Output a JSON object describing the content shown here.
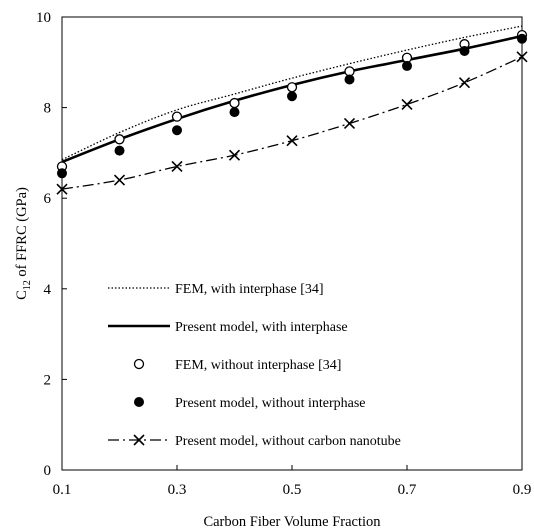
{
  "chart_data": {
    "type": "line",
    "xlabel": "Carbon Fiber Volume Fraction",
    "ylabel_main": "C",
    "ylabel_sub": "12",
    "ylabel_rest": " of FFRC (GPa)",
    "xlim": [
      0.1,
      0.9
    ],
    "ylim": [
      0,
      10
    ],
    "xticks": [
      "0.1",
      "0.3",
      "0.5",
      "0.7",
      "0.9"
    ],
    "yticks": [
      "0",
      "2",
      "4",
      "6",
      "8",
      "10"
    ],
    "grid": false,
    "legend_position": "lower-left",
    "series": [
      {
        "name": "FEM, with interphase [34]",
        "style": "dotted-line",
        "x": [
          0.1,
          0.2,
          0.3,
          0.4,
          0.5,
          0.6,
          0.7,
          0.8,
          0.9
        ],
        "y": [
          6.85,
          7.45,
          7.95,
          8.3,
          8.65,
          8.97,
          9.27,
          9.55,
          9.8
        ]
      },
      {
        "name": "Present model, with interphase",
        "style": "solid-line",
        "x": [
          0.1,
          0.2,
          0.3,
          0.4,
          0.5,
          0.6,
          0.7,
          0.8,
          0.9
        ],
        "y": [
          6.8,
          7.3,
          7.75,
          8.15,
          8.5,
          8.8,
          9.05,
          9.3,
          9.58
        ]
      },
      {
        "name": "FEM, without interphase [34]",
        "style": "open-circle",
        "x": [
          0.1,
          0.2,
          0.3,
          0.4,
          0.5,
          0.6,
          0.7,
          0.8,
          0.9
        ],
        "y": [
          6.7,
          7.3,
          7.8,
          8.1,
          8.45,
          8.8,
          9.1,
          9.4,
          9.6
        ]
      },
      {
        "name": "Present model, without interphase",
        "style": "filled-circle",
        "x": [
          0.1,
          0.2,
          0.3,
          0.4,
          0.5,
          0.6,
          0.7,
          0.8,
          0.9
        ],
        "y": [
          6.55,
          7.05,
          7.5,
          7.9,
          8.25,
          8.62,
          8.92,
          9.25,
          9.52
        ]
      },
      {
        "name": "Present model, without carbon nanotube",
        "style": "dash-dot-cross",
        "x": [
          0.1,
          0.2,
          0.3,
          0.4,
          0.5,
          0.6,
          0.7,
          0.8,
          0.9
        ],
        "y": [
          6.2,
          6.4,
          6.7,
          6.95,
          7.27,
          7.65,
          8.07,
          8.55,
          9.12
        ]
      }
    ]
  }
}
